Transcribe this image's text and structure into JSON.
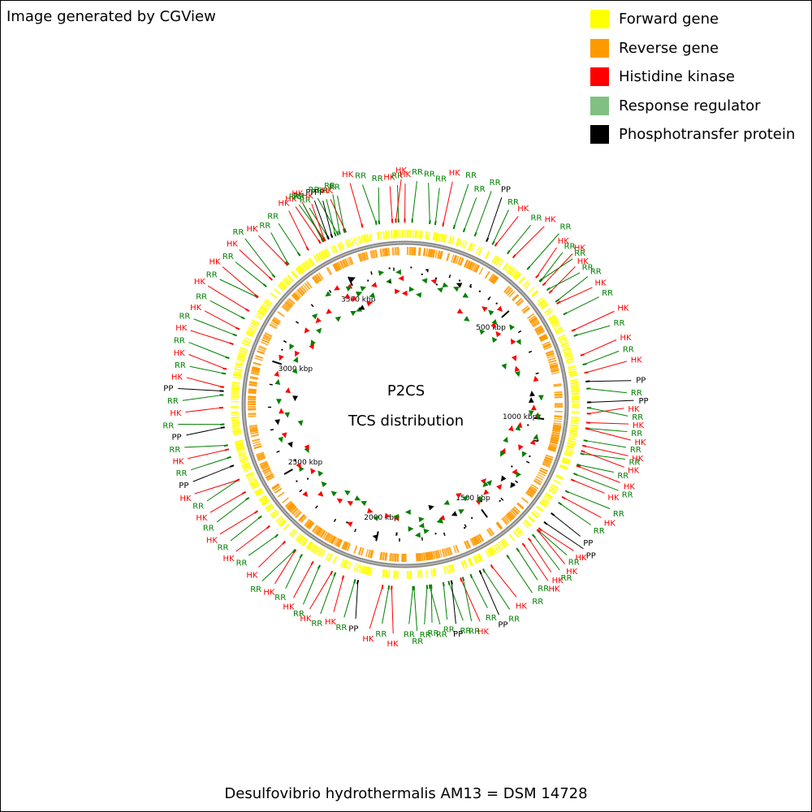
{
  "credit": "Image generated by CGView",
  "legend": [
    {
      "label": "Forward gene",
      "color": "#ffff00"
    },
    {
      "label": "Reverse gene",
      "color": "#ff9900"
    },
    {
      "label": "Histidine kinase",
      "color": "#ff0000"
    },
    {
      "label": "Response regulator",
      "color": "#80c080"
    },
    {
      "label": "Phosphotransfer protein",
      "color": "#000000"
    }
  ],
  "center_title": "P2CS",
  "center_subtitle": "TCS distribution",
  "organism": "Desulfovibrio hydrothermalis AM13 = DSM 14728",
  "genome_length_kbp": 3750,
  "ruler": [
    {
      "value": 500,
      "label": "500 kbp"
    },
    {
      "value": 1000,
      "label": "1000 kbp"
    },
    {
      "value": 1500,
      "label": "1500 kbp"
    },
    {
      "value": 2000,
      "label": "2000 kbp"
    },
    {
      "value": 2500,
      "label": "2500 kbp"
    },
    {
      "value": 3000,
      "label": "3000 kbp"
    },
    {
      "value": 3500,
      "label": "3500 kbp"
    }
  ],
  "type_colors": {
    "HK": "#ff0000",
    "RR": "#008000",
    "PP": "#000000"
  },
  "gene_labels": [
    {
      "text": "HK",
      "angle": -29
    },
    {
      "text": "RR",
      "angle": -28
    },
    {
      "text": "HK",
      "angle": -27
    },
    {
      "text": "RR",
      "angle": -26
    },
    {
      "text": "HK",
      "angle": -25
    },
    {
      "text": "PP",
      "angle": -24
    },
    {
      "text": "RR",
      "angle": -23
    },
    {
      "text": "PP",
      "angle": -22
    },
    {
      "text": "RR",
      "angle": -21
    },
    {
      "text": "HK",
      "angle": -20
    },
    {
      "text": "RR",
      "angle": -19
    },
    {
      "text": "RR",
      "angle": -18
    },
    {
      "text": "HK",
      "angle": -14
    },
    {
      "text": "RR",
      "angle": -11
    },
    {
      "text": "RR",
      "angle": -7
    },
    {
      "text": "HK",
      "angle": -4
    },
    {
      "text": "RR",
      "angle": -2
    },
    {
      "text": "HK",
      "angle": -1
    },
    {
      "text": "HK",
      "angle": 0
    },
    {
      "text": "RR",
      "angle": 3
    },
    {
      "text": "RR",
      "angle": 6
    },
    {
      "text": "RR",
      "angle": 9
    },
    {
      "text": "HK",
      "angle": 12
    },
    {
      "text": "RR",
      "angle": 16
    },
    {
      "text": "RR",
      "angle": 19
    },
    {
      "text": "RR",
      "angle": 22
    },
    {
      "text": "PP",
      "angle": 25
    },
    {
      "text": "RR",
      "angle": 28
    },
    {
      "text": "HK",
      "angle": 31
    },
    {
      "text": "RR",
      "angle": 35
    },
    {
      "text": "HK",
      "angle": 38
    },
    {
      "text": "RR",
      "angle": 42
    },
    {
      "text": "HK",
      "angle": 44
    },
    {
      "text": "RR",
      "angle": 46
    },
    {
      "text": "HK",
      "angle": 48
    },
    {
      "text": "RR",
      "angle": 49
    },
    {
      "text": "HK",
      "angle": 51
    },
    {
      "text": "RR",
      "angle": 53
    },
    {
      "text": "RR",
      "angle": 55
    },
    {
      "text": "HK",
      "angle": 58
    },
    {
      "text": "RR",
      "angle": 61
    },
    {
      "text": "HK",
      "angle": 66
    },
    {
      "text": "RR",
      "angle": 69
    },
    {
      "text": "HK",
      "angle": 73
    },
    {
      "text": "RR",
      "angle": 76
    },
    {
      "text": "HK",
      "angle": 79
    },
    {
      "text": "PP",
      "angle": 84
    },
    {
      "text": "RR",
      "angle": 87
    },
    {
      "text": "PP",
      "angle": 89
    },
    {
      "text": "HK",
      "angle": 91
    },
    {
      "text": "RR",
      "angle": 93
    },
    {
      "text": "HK",
      "angle": 95
    },
    {
      "text": "RR",
      "angle": 97
    },
    {
      "text": "HK",
      "angle": 99
    },
    {
      "text": "RR",
      "angle": 101
    },
    {
      "text": "HK",
      "angle": 103
    },
    {
      "text": "RR",
      "angle": 104
    },
    {
      "text": "HK",
      "angle": 106
    },
    {
      "text": "RR",
      "angle": 108
    },
    {
      "text": "HK",
      "angle": 110
    },
    {
      "text": "RR",
      "angle": 112
    },
    {
      "text": "HK",
      "angle": 114
    },
    {
      "text": "RR",
      "angle": 117
    },
    {
      "text": "HK",
      "angle": 120
    },
    {
      "text": "RR",
      "angle": 123
    },
    {
      "text": "PP",
      "angle": 127
    },
    {
      "text": "PP",
      "angle": 129
    },
    {
      "text": "HK",
      "angle": 131
    },
    {
      "text": "RR",
      "angle": 133
    },
    {
      "text": "HK",
      "angle": 135
    },
    {
      "text": "RR",
      "angle": 137
    },
    {
      "text": "HK",
      "angle": 139
    },
    {
      "text": "HK",
      "angle": 141
    },
    {
      "text": "RR",
      "angle": 143
    },
    {
      "text": "RR",
      "angle": 146
    },
    {
      "text": "HK",
      "angle": 150
    },
    {
      "text": "RR",
      "angle": 153
    },
    {
      "text": "PP",
      "angle": 156
    },
    {
      "text": "RR",
      "angle": 158
    },
    {
      "text": "HK",
      "angle": 161
    },
    {
      "text": "RR",
      "angle": 163
    },
    {
      "text": "RR",
      "angle": 165
    },
    {
      "text": "PP",
      "angle": 167
    },
    {
      "text": "RR",
      "angle": 169
    },
    {
      "text": "RR",
      "angle": 171
    },
    {
      "text": "RR",
      "angle": 173
    },
    {
      "text": "RR",
      "angle": 175
    },
    {
      "text": "RR",
      "angle": 177
    },
    {
      "text": "RR",
      "angle": 179
    },
    {
      "text": "HK",
      "angle": 183
    },
    {
      "text": "RR",
      "angle": 186
    },
    {
      "text": "HK",
      "angle": 189
    },
    {
      "text": "PP",
      "angle": 193
    },
    {
      "text": "RR",
      "angle": 196
    },
    {
      "text": "HK",
      "angle": 199
    },
    {
      "text": "RR",
      "angle": 202
    },
    {
      "text": "HK",
      "angle": 205
    },
    {
      "text": "RR",
      "angle": 207
    },
    {
      "text": "HK",
      "angle": 210
    },
    {
      "text": "RR",
      "angle": 213
    },
    {
      "text": "HK",
      "angle": 216
    },
    {
      "text": "RR",
      "angle": 219
    },
    {
      "text": "HK",
      "angle": 222
    },
    {
      "text": "RR",
      "angle": 226
    },
    {
      "text": "HK",
      "angle": 229
    },
    {
      "text": "RR",
      "angle": 232
    },
    {
      "text": "HK",
      "angle": 235
    },
    {
      "text": "RR",
      "angle": 238
    },
    {
      "text": "HK",
      "angle": 241
    },
    {
      "text": "RR",
      "angle": 244
    },
    {
      "text": "HK",
      "angle": 247
    },
    {
      "text": "PP",
      "angle": 250
    },
    {
      "text": "RR",
      "angle": 253
    },
    {
      "text": "HK",
      "angle": 256
    },
    {
      "text": "RR",
      "angle": 259
    },
    {
      "text": "PP",
      "angle": 262
    },
    {
      "text": "RR",
      "angle": 265
    },
    {
      "text": "HK",
      "angle": 268
    },
    {
      "text": "RR",
      "angle": 271
    },
    {
      "text": "PP",
      "angle": 274
    },
    {
      "text": "HK",
      "angle": 277
    },
    {
      "text": "RR",
      "angle": 280
    },
    {
      "text": "HK",
      "angle": 283
    },
    {
      "text": "RR",
      "angle": 286
    },
    {
      "text": "HK",
      "angle": 289
    },
    {
      "text": "RR",
      "angle": 292
    },
    {
      "text": "HK",
      "angle": 295
    },
    {
      "text": "RR",
      "angle": 298
    },
    {
      "text": "HK",
      "angle": 301
    },
    {
      "text": "RR",
      "angle": 304
    },
    {
      "text": "HK",
      "angle": 307
    },
    {
      "text": "RR",
      "angle": 310
    },
    {
      "text": "HK",
      "angle": 313
    },
    {
      "text": "RR",
      "angle": 316
    },
    {
      "text": "HK",
      "angle": 319
    },
    {
      "text": "RR",
      "angle": 322
    },
    {
      "text": "RR",
      "angle": 325
    },
    {
      "text": "HK",
      "angle": 329
    },
    {
      "text": "RR",
      "angle": 333
    }
  ]
}
